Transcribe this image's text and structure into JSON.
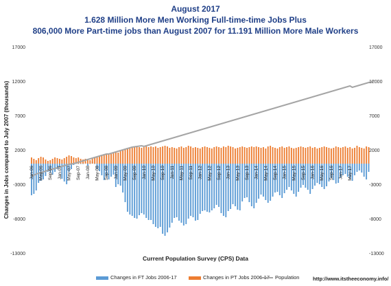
{
  "title": "August 2017",
  "subtitle1": "1.628 Million More Men Working Full-time-time Jobs Plus",
  "subtitle2": "806,000 More Part-time jobs than August 2007 for 11.191 Million More Male Workers",
  "source": "http://www.itstheeconomy.info/",
  "colors": {
    "ft": "#5b9bd5",
    "pt": "#ed7d31",
    "population": "#a5a5a5",
    "title": "#1f3f87"
  },
  "chart_data": {
    "type": "bar",
    "title": "August 2017",
    "xlabel": "Current Population Survey (CPS) Data",
    "ylabel": "Changes in Jobs compared to July 2007 (thousands)",
    "ylim": [
      -13000,
      17000
    ],
    "y_ticks": [
      -13000,
      -8000,
      -3000,
      2000,
      7000,
      12000,
      17000
    ],
    "y_tick_labels": [
      "-13000",
      "-8000",
      "-3000",
      "2000",
      "7000",
      "12000",
      "17000"
    ],
    "x_tick_labels": [
      "Jan-06",
      "May-06",
      "Sep-06",
      "Jan-07",
      "May-07",
      "Sep-07",
      "Jan-08",
      "May-08",
      "Sep-08",
      "Jan-09",
      "May-09",
      "Sep-09",
      "Jan-10",
      "May-10",
      "Sep-10",
      "Jan-11",
      "May-11",
      "Sep-11",
      "Jan-12",
      "May-12",
      "Sep-12",
      "Jan-13",
      "May-13",
      "Sep-13",
      "Jan-14",
      "May-14",
      "Sep-14",
      "Jan-15",
      "May-15",
      "Sep-15",
      "Jan-16",
      "May-16",
      "Sep-16",
      "Jan-17",
      "May-17"
    ],
    "grid": false,
    "legend_position": "bottom",
    "series": [
      {
        "name": "Changes in FT Jobs 2006-17",
        "type": "bar",
        "values": [
          -4600,
          -4400,
          -3900,
          -2800,
          -2500,
          -2300,
          -1800,
          -1200,
          -1300,
          -1600,
          -1200,
          -800,
          -500,
          -2200,
          -2600,
          -3000,
          -1200,
          -800,
          -200,
          0,
          0,
          0,
          0,
          200,
          -300,
          0,
          300,
          0,
          -800,
          -1100,
          -1700,
          -2400,
          -1800,
          -2300,
          -1900,
          -1600,
          -3400,
          -3000,
          -3200,
          -4200,
          -5600,
          -7000,
          -7400,
          -7600,
          -7900,
          -8000,
          -7500,
          -7200,
          -7400,
          -7900,
          -8200,
          -8200,
          -8800,
          -9200,
          -9400,
          -9200,
          -10200,
          -10500,
          -10000,
          -9300,
          -8600,
          -7900,
          -7800,
          -8300,
          -8600,
          -9000,
          -8800,
          -8000,
          -7600,
          -7800,
          -8300,
          -8200,
          -7300,
          -6900,
          -6800,
          -7000,
          -7100,
          -6800,
          -6500,
          -6000,
          -6300,
          -7200,
          -7600,
          -7800,
          -6900,
          -6600,
          -5900,
          -6200,
          -6700,
          -6800,
          -5500,
          -5000,
          -4900,
          -5600,
          -6200,
          -6500,
          -5700,
          -5100,
          -4500,
          -4800,
          -5300,
          -5700,
          -5400,
          -4800,
          -4200,
          -4100,
          -4600,
          -5000,
          -4300,
          -3800,
          -3400,
          -3900,
          -4400,
          -4800,
          -4100,
          -3500,
          -3100,
          -3500,
          -3800,
          -4400,
          -3700,
          -3200,
          -2800,
          -3000,
          -3400,
          -3700,
          -3300,
          -2600,
          -2100,
          -2400,
          -2900,
          -2800,
          -2000,
          -1700,
          -1500,
          -1900,
          -2200,
          -2500,
          -1700,
          -1200,
          -1000,
          -1300,
          -1900,
          -2300,
          -1200
        ]
      },
      {
        "name": "Changes in PT Jobs 2006-17",
        "type": "bar",
        "values": [
          900,
          700,
          500,
          800,
          1000,
          900,
          600,
          400,
          500,
          700,
          900,
          800,
          700,
          600,
          800,
          1000,
          1200,
          1100,
          900,
          800,
          900,
          700,
          600,
          700,
          600,
          500,
          800,
          900,
          1000,
          1200,
          1300,
          1300,
          1400,
          1500,
          1400,
          1600,
          1700,
          1600,
          1800,
          1900,
          2100,
          2200,
          2200,
          2300,
          2400,
          2500,
          2400,
          2300,
          2400,
          2500,
          2400,
          2500,
          2400,
          2500,
          2300,
          2400,
          2500,
          2600,
          2500,
          2300,
          2400,
          2300,
          2200,
          2400,
          2500,
          2300,
          2400,
          2600,
          2500,
          2300,
          2400,
          2300,
          2200,
          2400,
          2500,
          2400,
          2300,
          2200,
          2400,
          2500,
          2400,
          2300,
          2500,
          2400,
          2600,
          2500,
          2400,
          2200,
          2300,
          2400,
          2500,
          2400,
          2300,
          2400,
          2500,
          2400,
          2500,
          2400,
          2300,
          2400,
          2200,
          2500,
          2600,
          2400,
          2300,
          2200,
          2400,
          2500,
          2300,
          2400,
          2500,
          2300,
          2200,
          2300,
          2400,
          2500,
          2400,
          2300,
          2400,
          2500,
          2300,
          2400,
          2200,
          2300,
          2400,
          2500,
          2400,
          2300,
          2200,
          2300,
          2500,
          2400,
          2300,
          2400,
          2500,
          2300,
          2400,
          2200,
          2300,
          2600,
          2400,
          2300,
          2200,
          2500,
          2400,
          2600,
          2500,
          2400,
          2900,
          3200,
          2900,
          2500
        ]
      },
      {
        "name": "Population",
        "type": "line",
        "values": [
          -1800,
          -1700,
          -1500,
          -1400,
          -1300,
          -1200,
          -1100,
          -1000,
          -900,
          -800,
          -700,
          -600,
          -500,
          -400,
          -300,
          -200,
          -100,
          -50,
          0,
          100,
          200,
          300,
          400,
          500,
          600,
          700,
          800,
          900,
          1000,
          1100,
          1200,
          1300,
          1400,
          1400,
          1500,
          1600,
          1700,
          1800,
          1900,
          2000,
          2100,
          2200,
          2300,
          2400,
          2450,
          2500,
          2550,
          2600,
          2500,
          2600,
          2700,
          2800,
          2900,
          3000,
          3100,
          3200,
          3300,
          3400,
          3500,
          3600,
          3700,
          3800,
          3900,
          4000,
          4100,
          4200,
          4300,
          4400,
          4500,
          4600,
          4700,
          4800,
          4900,
          5000,
          5100,
          5200,
          5300,
          5400,
          5500,
          5600,
          5700,
          5800,
          5900,
          6000,
          6100,
          6200,
          6300,
          6400,
          6500,
          6600,
          6700,
          6800,
          6900,
          7000,
          7100,
          7200,
          7300,
          7400,
          7500,
          7600,
          7700,
          7800,
          7900,
          8000,
          8100,
          8200,
          8300,
          8400,
          8500,
          8600,
          8700,
          8800,
          8900,
          9000,
          9100,
          9200,
          9300,
          9400,
          9500,
          9600,
          9700,
          9800,
          9900,
          10000,
          10100,
          10200,
          10300,
          10400,
          10500,
          10600,
          10700,
          10800,
          10900,
          11000,
          11100,
          11200,
          11300,
          11100,
          11200,
          11300,
          11400,
          11500,
          11600,
          11700,
          11800,
          11900,
          12000
        ]
      }
    ]
  }
}
